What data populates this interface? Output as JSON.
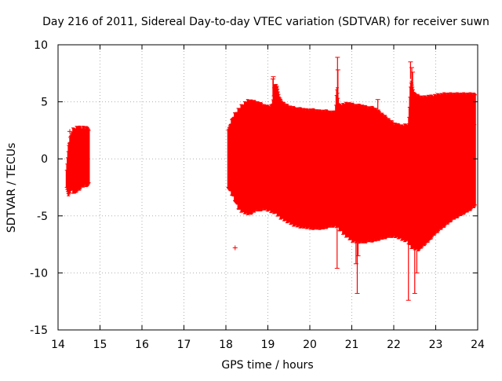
{
  "chart_data": {
    "type": "error-bar",
    "title": "Day 216 of 2011, Sidereal Day-to-day VTEC variation (SDTVAR) for receiver suwn",
    "xlabel": "GPS time / hours",
    "ylabel": "SDTVAR / TECUs",
    "xlim": [
      14,
      24
    ],
    "ylim": [
      -15,
      10
    ],
    "xticks": [
      14,
      15,
      16,
      17,
      18,
      19,
      20,
      21,
      22,
      23,
      24
    ],
    "yticks": [
      -15,
      -10,
      -5,
      0,
      5,
      10
    ],
    "grid": true,
    "color": "#ff0000",
    "series": [
      {
        "name": "SDTVAR",
        "envelope": {
          "x": [
            14.2,
            14.25,
            14.3,
            14.35,
            14.4,
            14.45,
            14.5,
            14.55,
            14.6,
            14.65,
            14.7,
            14.75
          ],
          "upper": [
            -1.0,
            1.5,
            2.1,
            2.7,
            2.8,
            2.9,
            2.9,
            2.8,
            2.9,
            2.8,
            2.9,
            2.8
          ],
          "lower": [
            -2.5,
            -3.5,
            -2.8,
            -3.0,
            -3.2,
            -2.9,
            -2.8,
            -2.6,
            -2.5,
            -2.4,
            -2.5,
            -2.4
          ]
        },
        "envelope2": {
          "x": [
            18.05,
            18.1,
            18.2,
            18.3,
            18.4,
            18.5,
            18.6,
            18.7,
            18.8,
            18.9,
            19.0,
            19.1,
            19.15,
            19.2,
            19.25,
            19.3,
            19.4,
            19.5,
            19.6,
            19.7,
            19.8,
            19.9,
            20.0,
            20.1,
            20.2,
            20.3,
            20.4,
            20.5,
            20.6,
            20.65,
            20.7,
            20.8,
            20.9,
            21.0,
            21.1,
            21.2,
            21.3,
            21.4,
            21.5,
            21.6,
            21.7,
            21.8,
            21.9,
            22.0,
            22.1,
            22.2,
            22.3,
            22.35,
            22.4,
            22.45,
            22.5,
            22.6,
            22.7,
            22.8,
            22.9,
            23.0,
            23.2,
            23.4,
            23.6,
            23.8,
            23.95
          ],
          "upper": [
            2.5,
            3.2,
            4.0,
            4.5,
            4.9,
            5.2,
            5.2,
            5.1,
            5.0,
            4.8,
            4.7,
            4.8,
            6.5,
            6.8,
            6.0,
            5.3,
            4.9,
            4.7,
            4.6,
            4.5,
            4.5,
            4.4,
            4.4,
            4.4,
            4.3,
            4.3,
            4.3,
            4.2,
            4.2,
            6.5,
            4.8,
            4.9,
            5.0,
            4.9,
            4.8,
            4.8,
            4.7,
            4.6,
            4.6,
            4.4,
            4.1,
            3.8,
            3.5,
            3.2,
            3.1,
            3.0,
            3.1,
            3.1,
            7.0,
            6.5,
            5.8,
            5.6,
            5.5,
            5.6,
            5.6,
            5.7,
            5.8,
            5.8,
            5.8,
            5.8,
            5.8
          ],
          "lower": [
            -2.5,
            -3.0,
            -3.6,
            -4.5,
            -4.8,
            -4.9,
            -4.9,
            -4.6,
            -4.6,
            -4.5,
            -4.6,
            -4.8,
            -4.8,
            -5.0,
            -5.1,
            -5.3,
            -5.5,
            -5.7,
            -5.9,
            -6.0,
            -6.1,
            -6.1,
            -6.2,
            -6.2,
            -6.2,
            -6.2,
            -6.1,
            -6.0,
            -6.0,
            -6.1,
            -6.3,
            -6.7,
            -7.0,
            -7.3,
            -7.4,
            -7.4,
            -7.4,
            -7.3,
            -7.3,
            -7.2,
            -7.1,
            -7.0,
            -6.9,
            -6.9,
            -7.0,
            -7.2,
            -7.3,
            -7.5,
            -7.8,
            -8.0,
            -8.0,
            -8.1,
            -7.7,
            -7.4,
            -7.0,
            -6.6,
            -6.0,
            -5.4,
            -5.0,
            -4.6,
            -4.2
          ]
        },
        "spikes": [
          {
            "x": 19.12,
            "y": 7.0
          },
          {
            "x": 19.13,
            "y": 7.2
          },
          {
            "x": 20.66,
            "y": 8.9
          },
          {
            "x": 20.67,
            "y": 7.8
          },
          {
            "x": 20.65,
            "y": -9.6
          },
          {
            "x": 21.13,
            "y": -11.8
          },
          {
            "x": 21.15,
            "y": -8.5
          },
          {
            "x": 21.1,
            "y": -9.2
          },
          {
            "x": 22.35,
            "y": -12.4
          },
          {
            "x": 22.4,
            "y": 8.5
          },
          {
            "x": 22.43,
            "y": 8.0
          },
          {
            "x": 22.45,
            "y": 7.6
          },
          {
            "x": 22.5,
            "y": -11.8
          },
          {
            "x": 22.55,
            "y": -10.0
          },
          {
            "x": 21.62,
            "y": 5.2
          },
          {
            "x": 23.91,
            "y": 3.0
          }
        ],
        "outliers": [
          {
            "x": 18.22,
            "y": -7.8
          },
          {
            "x": 14.28,
            "y": 2.4
          },
          {
            "x": 14.52,
            "y": 0.0
          },
          {
            "x": 14.7,
            "y": 0.5
          }
        ]
      }
    ]
  }
}
